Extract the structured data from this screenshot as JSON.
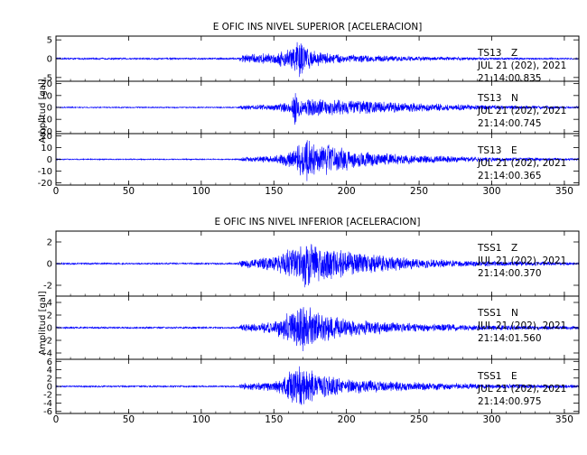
{
  "chart_data": [
    {
      "type": "line",
      "title": "E OFIC INS NIVEL SUPERIOR [ACELERACION]",
      "ylabel": "Amplitud [gal]",
      "xlim": [
        0,
        360
      ],
      "x_ticks": [
        0,
        50,
        100,
        150,
        200,
        250,
        300,
        350
      ],
      "line_color": "#0000ff",
      "panels": [
        {
          "station": "TS13",
          "component": "Z",
          "date": "JUL 21 (202), 2021",
          "time": "21:14:00.835",
          "ylim": [
            -6,
            6
          ],
          "y_ticks": [
            5,
            0,
            -5
          ],
          "envelope": [
            [
              0,
              0.25
            ],
            [
              125,
              0.25
            ],
            [
              128,
              1.2
            ],
            [
              150,
              1.6
            ],
            [
              160,
              3.0
            ],
            [
              165,
              5.0
            ],
            [
              169,
              6.0
            ],
            [
              172,
              3.5
            ],
            [
              180,
              2.0
            ],
            [
              200,
              1.2
            ],
            [
              240,
              0.7
            ],
            [
              280,
              0.5
            ],
            [
              300,
              0.3
            ],
            [
              360,
              0.2
            ]
          ]
        },
        {
          "station": "TS13",
          "component": "N",
          "date": "JUL 21 (202), 2021",
          "time": "21:14:00.745",
          "ylim": [
            -22,
            22
          ],
          "y_ticks": [
            20,
            10,
            0,
            -10,
            -20
          ],
          "envelope": [
            [
              0,
              0.5
            ],
            [
              125,
              0.5
            ],
            [
              128,
              2
            ],
            [
              150,
              3
            ],
            [
              162,
              5
            ],
            [
              165,
              20
            ],
            [
              168,
              8
            ],
            [
              180,
              8
            ],
            [
              200,
              7
            ],
            [
              230,
              5
            ],
            [
              270,
              3
            ],
            [
              300,
              2
            ],
            [
              360,
              1
            ]
          ]
        },
        {
          "station": "TS13",
          "component": "E",
          "date": "JUL 21 (202), 2021",
          "time": "21:14:00.365",
          "ylim": [
            -22,
            22
          ],
          "y_ticks": [
            20,
            10,
            0,
            -10,
            -20
          ],
          "envelope": [
            [
              0,
              0.5
            ],
            [
              125,
              0.5
            ],
            [
              128,
              2
            ],
            [
              150,
              3
            ],
            [
              165,
              10
            ],
            [
              172,
              20
            ],
            [
              185,
              15
            ],
            [
              210,
              7
            ],
            [
              250,
              4
            ],
            [
              300,
              2
            ],
            [
              360,
              1
            ]
          ]
        }
      ]
    },
    {
      "type": "line",
      "title": "E OFIC INS NIVEL INFERIOR [ACELERACION]",
      "ylabel": "Amplitud [gal]",
      "xlim": [
        0,
        360
      ],
      "x_ticks": [
        0,
        50,
        100,
        150,
        200,
        250,
        300,
        350
      ],
      "line_color": "#0000ff",
      "panels": [
        {
          "station": "TSS1",
          "component": "Z",
          "date": "JUL 21 (202), 2021",
          "time": "21:14:00.370",
          "ylim": [
            -3,
            3
          ],
          "y_ticks": [
            2,
            0,
            -2
          ],
          "envelope": [
            [
              0,
              0.08
            ],
            [
              125,
              0.08
            ],
            [
              128,
              0.4
            ],
            [
              150,
              0.7
            ],
            [
              165,
              1.8
            ],
            [
              172,
              2.8
            ],
            [
              180,
              1.8
            ],
            [
              200,
              1.3
            ],
            [
              240,
              0.6
            ],
            [
              280,
              0.3
            ],
            [
              360,
              0.15
            ]
          ]
        },
        {
          "station": "TSS1",
          "component": "N",
          "date": "JUL 21 (202), 2021",
          "time": "21:14:01.560",
          "ylim": [
            -5,
            5
          ],
          "y_ticks": [
            4,
            2,
            0,
            -2,
            -4
          ],
          "envelope": [
            [
              0,
              0.15
            ],
            [
              125,
              0.15
            ],
            [
              128,
              0.6
            ],
            [
              150,
              1.0
            ],
            [
              165,
              3.5
            ],
            [
              170,
              4.5
            ],
            [
              180,
              2.5
            ],
            [
              200,
              1.5
            ],
            [
              240,
              0.8
            ],
            [
              290,
              0.5
            ],
            [
              360,
              0.3
            ]
          ]
        },
        {
          "station": "TSS1",
          "component": "E",
          "date": "JUL 21 (202), 2021",
          "time": "21:14:00.975",
          "ylim": [
            -6.5,
            6.5
          ],
          "y_ticks": [
            6,
            4,
            2,
            0,
            -2,
            -4,
            -6
          ],
          "envelope": [
            [
              0,
              0.2
            ],
            [
              125,
              0.2
            ],
            [
              128,
              0.8
            ],
            [
              150,
              1.2
            ],
            [
              165,
              5
            ],
            [
              170,
              6
            ],
            [
              180,
              3.5
            ],
            [
              200,
              2.0
            ],
            [
              240,
              1.2
            ],
            [
              300,
              0.6
            ],
            [
              360,
              0.4
            ]
          ]
        }
      ]
    }
  ]
}
